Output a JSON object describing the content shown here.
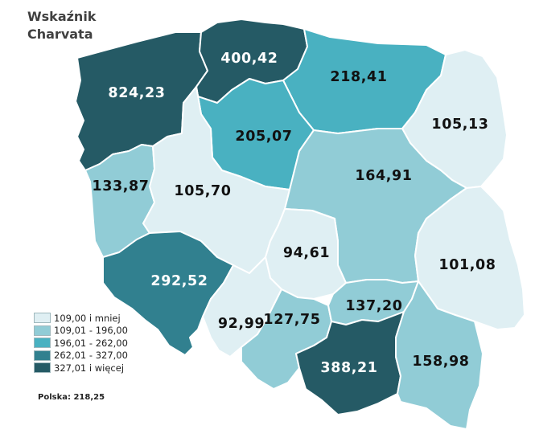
{
  "title": {
    "line1": "Wskaźnik",
    "line2": "Charvata"
  },
  "legend": [
    {
      "label": "109,00 i mniej",
      "color": "#dfeff3"
    },
    {
      "label": "109,01 - 196,00",
      "color": "#91ccd6"
    },
    {
      "label": "196,01 - 262,00",
      "color": "#49b1c1"
    },
    {
      "label": "262,01 - 327,00",
      "color": "#31808f"
    },
    {
      "label": "327,01 i więcej",
      "color": "#255a65"
    }
  ],
  "total": "Polska: 218,25",
  "regions": [
    {
      "name": "zachodniopomorskie",
      "value": "824,23",
      "class_index": 4
    },
    {
      "name": "pomorskie",
      "value": "400,42",
      "class_index": 4
    },
    {
      "name": "warmińsko-mazurskie",
      "value": "218,41",
      "class_index": 2
    },
    {
      "name": "podlaskie",
      "value": "105,13",
      "class_index": 0
    },
    {
      "name": "lubuskie",
      "value": "133,87",
      "class_index": 1
    },
    {
      "name": "kujawsko-pomorskie",
      "value": "205,07",
      "class_index": 2
    },
    {
      "name": "wielkopolskie",
      "value": "105,70",
      "class_index": 0
    },
    {
      "name": "mazowieckie",
      "value": "164,91",
      "class_index": 1
    },
    {
      "name": "dolnośląskie",
      "value": "292,52",
      "class_index": 3
    },
    {
      "name": "łódzkie",
      "value": "94,61",
      "class_index": 0
    },
    {
      "name": "lubelskie",
      "value": "101,08",
      "class_index": 0
    },
    {
      "name": "opolskie",
      "value": "92,99",
      "class_index": 0
    },
    {
      "name": "śląskie",
      "value": "127,75",
      "class_index": 1
    },
    {
      "name": "świętokrzyskie",
      "value": "137,20",
      "class_index": 1
    },
    {
      "name": "małopolskie",
      "value": "388,21",
      "class_index": 4
    },
    {
      "name": "podkarpackie",
      "value": "158,98",
      "class_index": 1
    }
  ]
}
